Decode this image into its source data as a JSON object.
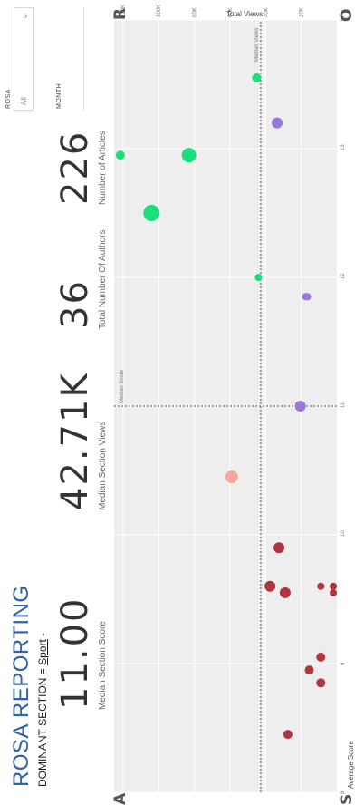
{
  "header": {
    "title": "ROSA REPORTING",
    "subtitle_prefix": "DOMINANT SECTION = ",
    "subtitle_link": "Sport",
    "subtitle_suffix": " -"
  },
  "kpis": [
    {
      "value": "11.00",
      "label": "Median Section Score"
    },
    {
      "value": "42.71K",
      "label": "Median Section Views"
    },
    {
      "value": "36",
      "label": "Total Number Of Authors"
    },
    {
      "value": "226",
      "label": "Number of Articles"
    }
  ],
  "filters": {
    "rosa_label": "ROSA",
    "rosa_value": "All",
    "month_label": "MONTH"
  },
  "corners": {
    "top_left": "A",
    "bottom_left": "S",
    "top_right": "R",
    "bottom_right": "O"
  },
  "colors": {
    "green": "#19e07c",
    "salmon": "#f4a996",
    "purple": "#9b77d9",
    "darkred": "#b0343d"
  },
  "chart_data": {
    "type": "scatter",
    "title": "",
    "xlabel": "Total Views",
    "ylabel": "Average Score",
    "xlim": [
      0,
      125000
    ],
    "ylim": [
      8,
      14
    ],
    "xticks": [
      {
        "value": 20000,
        "label": "20K"
      },
      {
        "value": 40000,
        "label": "40K"
      },
      {
        "value": 60000,
        "label": "60K"
      },
      {
        "value": 80000,
        "label": "80K"
      },
      {
        "value": 100000,
        "label": "100K"
      },
      {
        "value": 120000,
        "label": "120K"
      }
    ],
    "yticks": [
      {
        "value": 8,
        "label": "8"
      },
      {
        "value": 9,
        "label": "9"
      },
      {
        "value": 10,
        "label": "10"
      },
      {
        "value": 11,
        "label": "11"
      },
      {
        "value": 12,
        "label": "12"
      },
      {
        "value": 13,
        "label": "13"
      },
      {
        "value": 14,
        "label": "14"
      }
    ],
    "reference_lines": {
      "median_views": {
        "value": 42710,
        "label": "Median Views"
      },
      "median_score": {
        "value": 11.0,
        "label": "Median Score"
      }
    },
    "points": [
      {
        "x": 2000,
        "y": 9.6,
        "color": "darkred",
        "size": 4
      },
      {
        "x": 2000,
        "y": 9.55,
        "color": "darkred",
        "size": 4
      },
      {
        "x": 9000,
        "y": 9.6,
        "color": "darkred",
        "size": 4
      },
      {
        "x": 9000,
        "y": 9.05,
        "color": "darkred",
        "size": 5
      },
      {
        "x": 9000,
        "y": 8.85,
        "color": "darkred",
        "size": 5
      },
      {
        "x": 15500,
        "y": 8.95,
        "color": "darkred",
        "size": 5
      },
      {
        "x": 16500,
        "y": 11.85,
        "color": "purple",
        "size": 4
      },
      {
        "x": 17500,
        "y": 11.85,
        "color": "purple",
        "size": 4
      },
      {
        "x": 20500,
        "y": 11.0,
        "color": "purple",
        "size": 6
      },
      {
        "x": 27500,
        "y": 8.45,
        "color": "darkred",
        "size": 5
      },
      {
        "x": 29000,
        "y": 9.55,
        "color": "darkred",
        "size": 6
      },
      {
        "x": 32500,
        "y": 9.9,
        "color": "darkred",
        "size": 6
      },
      {
        "x": 33500,
        "y": 13.2,
        "color": "purple",
        "size": 6
      },
      {
        "x": 37500,
        "y": 9.6,
        "color": "darkred",
        "size": 6
      },
      {
        "x": 44000,
        "y": 12.0,
        "color": "green",
        "size": 4
      },
      {
        "x": 45000,
        "y": 13.55,
        "color": "green",
        "size": 5
      },
      {
        "x": 59000,
        "y": 10.45,
        "color": "salmon",
        "size": 7
      },
      {
        "x": 83000,
        "y": 12.95,
        "color": "green",
        "size": 8
      },
      {
        "x": 104000,
        "y": 12.5,
        "color": "green",
        "size": 9
      },
      {
        "x": 121500,
        "y": 12.95,
        "color": "green",
        "size": 5
      }
    ]
  }
}
